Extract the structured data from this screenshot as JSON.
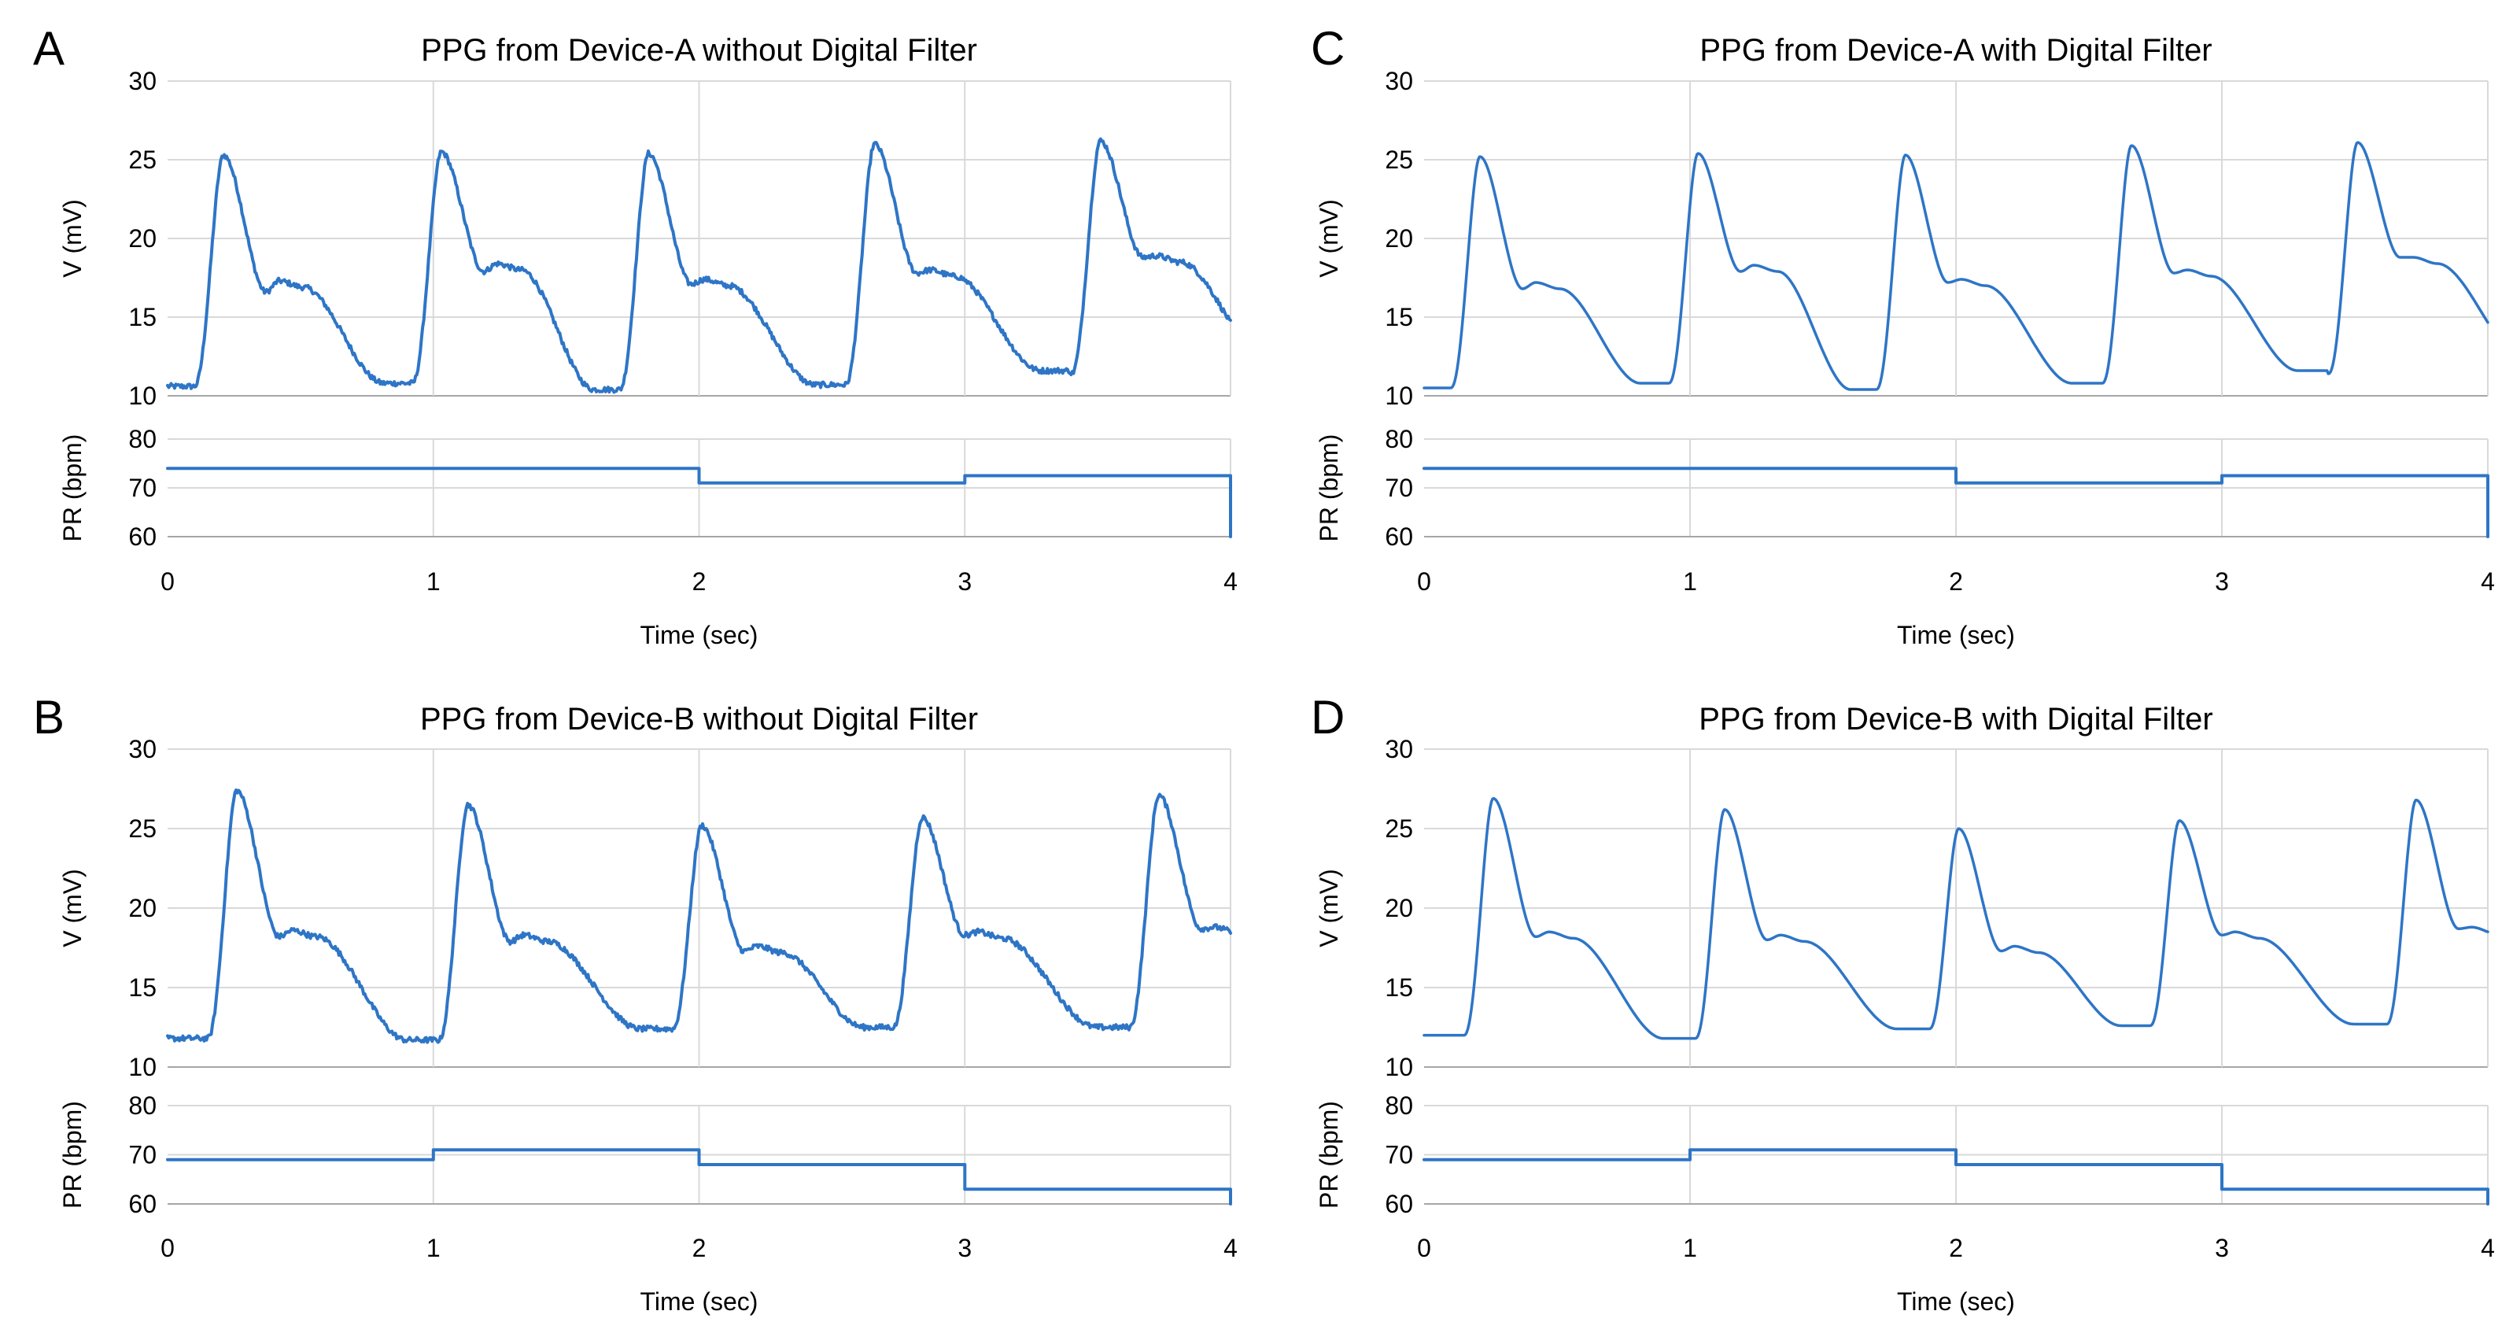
{
  "colors": {
    "trace": "#2e75c6",
    "grid": "#d9d9d9",
    "axis": "#a6a6a6"
  },
  "chart_data": [
    {
      "panel": "A",
      "type": "line",
      "title": "PPG from Device-A without Digital Filter",
      "xlabel": "Time (sec)",
      "xlim": [
        0,
        4
      ],
      "x_ticks": [
        "0",
        "1",
        "2",
        "3",
        "4"
      ],
      "grid": true,
      "ppg": {
        "ylabel": "V (mV)",
        "ylim": [
          10,
          30
        ],
        "y_ticks": [
          "10",
          "15",
          "20",
          "25",
          "30"
        ],
        "noisy": true,
        "beats": [
          {
            "onset": 0.1,
            "base": 10.6,
            "peak": 25.3,
            "notch": 16.6,
            "notch_peak": 17.3,
            "end": 10.8
          },
          {
            "onset": 0.92,
            "base": 10.8,
            "peak": 25.5,
            "notch": 17.9,
            "notch_peak": 18.4,
            "end": 10.4
          },
          {
            "onset": 1.7,
            "base": 10.4,
            "peak": 25.4,
            "notch": 17.1,
            "notch_peak": 17.4,
            "end": 10.7
          },
          {
            "onset": 2.55,
            "base": 10.7,
            "peak": 26.0,
            "notch": 17.8,
            "notch_peak": 18.0,
            "end": 11.6
          },
          {
            "onset": 3.4,
            "base": 11.4,
            "peak": 26.2,
            "notch": 18.8,
            "notch_peak": 18.9,
            "end": 12.3
          }
        ]
      },
      "pr": {
        "ylabel": "PR (bpm)",
        "ylim": [
          60,
          80
        ],
        "y_ticks": [
          "60",
          "70",
          "80"
        ],
        "steps": [
          {
            "x0": 0,
            "x1": 2,
            "value": 74
          },
          {
            "x0": 2,
            "x1": 3,
            "value": 71
          },
          {
            "x0": 3,
            "x1": 4,
            "value": 72.5
          }
        ]
      }
    },
    {
      "panel": "C",
      "type": "line",
      "title": "PPG from Device-A with Digital Filter",
      "xlabel": "Time (sec)",
      "xlim": [
        0,
        4
      ],
      "x_ticks": [
        "0",
        "1",
        "2",
        "3",
        "4"
      ],
      "grid": true,
      "ppg": {
        "ylabel": "V (mV)",
        "ylim": [
          10,
          30
        ],
        "y_ticks": [
          "10",
          "15",
          "20",
          "25",
          "30"
        ],
        "noisy": false,
        "beats": [
          {
            "onset": 0.1,
            "base": 10.5,
            "peak": 25.2,
            "notch": 16.8,
            "notch_peak": 17.2,
            "end": 10.8
          },
          {
            "onset": 0.92,
            "base": 10.8,
            "peak": 25.4,
            "notch": 17.9,
            "notch_peak": 18.3,
            "end": 10.4
          },
          {
            "onset": 1.7,
            "base": 10.4,
            "peak": 25.3,
            "notch": 17.2,
            "notch_peak": 17.4,
            "end": 10.8
          },
          {
            "onset": 2.55,
            "base": 10.8,
            "peak": 25.9,
            "notch": 17.8,
            "notch_peak": 18.0,
            "end": 11.6
          },
          {
            "onset": 3.4,
            "base": 11.4,
            "peak": 26.1,
            "notch": 18.8,
            "notch_peak": 18.8,
            "end": 12.4
          }
        ]
      },
      "pr": {
        "ylabel": "PR (bpm)",
        "ylim": [
          60,
          80
        ],
        "y_ticks": [
          "60",
          "70",
          "80"
        ],
        "steps": [
          {
            "x0": 0,
            "x1": 2,
            "value": 74
          },
          {
            "x0": 2,
            "x1": 3,
            "value": 71
          },
          {
            "x0": 3,
            "x1": 4,
            "value": 72.5
          }
        ]
      }
    },
    {
      "panel": "B",
      "type": "line",
      "title": "PPG from Device-B without Digital Filter",
      "xlabel": "Time (sec)",
      "xlim": [
        0,
        4
      ],
      "x_ticks": [
        "0",
        "1",
        "2",
        "3",
        "4"
      ],
      "grid": true,
      "ppg": {
        "ylabel": "V (mV)",
        "ylim": [
          10,
          30
        ],
        "y_ticks": [
          "10",
          "15",
          "20",
          "25",
          "30"
        ],
        "noisy": true,
        "beats": [
          {
            "onset": 0.15,
            "base": 11.8,
            "peak": 27.4,
            "notch": 18.2,
            "notch_peak": 18.6,
            "end": 11.7
          },
          {
            "onset": 1.02,
            "base": 11.7,
            "peak": 26.5,
            "notch": 17.9,
            "notch_peak": 18.3,
            "end": 12.4
          },
          {
            "onset": 1.9,
            "base": 12.4,
            "peak": 25.2,
            "notch": 17.3,
            "notch_peak": 17.6,
            "end": 12.5
          },
          {
            "onset": 2.73,
            "base": 12.5,
            "peak": 25.7,
            "notch": 18.3,
            "notch_peak": 18.5,
            "end": 12.5
          },
          {
            "onset": 3.62,
            "base": 12.5,
            "peak": 27.1,
            "notch": 18.7,
            "notch_peak": 18.8,
            "end": 18.7
          }
        ]
      },
      "pr": {
        "ylabel": "PR (bpm)",
        "ylim": [
          60,
          80
        ],
        "y_ticks": [
          "60",
          "70",
          "80"
        ],
        "steps": [
          {
            "x0": 0,
            "x1": 1,
            "value": 69
          },
          {
            "x0": 1,
            "x1": 2,
            "value": 71
          },
          {
            "x0": 2,
            "x1": 3,
            "value": 68
          },
          {
            "x0": 3,
            "x1": 4,
            "value": 63
          }
        ]
      }
    },
    {
      "panel": "D",
      "type": "line",
      "title": "PPG from Device-B with Digital Filter",
      "xlabel": "Time (sec)",
      "xlim": [
        0,
        4
      ],
      "x_ticks": [
        "0",
        "1",
        "2",
        "3",
        "4"
      ],
      "grid": true,
      "ppg": {
        "ylabel": "V (mV)",
        "ylim": [
          10,
          30
        ],
        "y_ticks": [
          "10",
          "15",
          "20",
          "25",
          "30"
        ],
        "noisy": false,
        "beats": [
          {
            "onset": 0.15,
            "base": 12.0,
            "peak": 26.9,
            "notch": 18.2,
            "notch_peak": 18.5,
            "end": 11.8
          },
          {
            "onset": 1.02,
            "base": 11.8,
            "peak": 26.2,
            "notch": 18.0,
            "notch_peak": 18.3,
            "end": 12.4
          },
          {
            "onset": 1.9,
            "base": 12.4,
            "peak": 25.0,
            "notch": 17.3,
            "notch_peak": 17.6,
            "end": 12.6
          },
          {
            "onset": 2.73,
            "base": 12.6,
            "peak": 25.5,
            "notch": 18.3,
            "notch_peak": 18.5,
            "end": 12.7
          },
          {
            "onset": 3.62,
            "base": 12.7,
            "peak": 26.8,
            "notch": 18.7,
            "notch_peak": 18.8,
            "end": 18.7
          }
        ]
      },
      "pr": {
        "ylabel": "PR (bpm)",
        "ylim": [
          60,
          80
        ],
        "y_ticks": [
          "60",
          "70",
          "80"
        ],
        "steps": [
          {
            "x0": 0,
            "x1": 1,
            "value": 69
          },
          {
            "x0": 1,
            "x1": 2,
            "value": 71
          },
          {
            "x0": 2,
            "x1": 3,
            "value": 68
          },
          {
            "x0": 3,
            "x1": 4,
            "value": 63
          }
        ]
      }
    }
  ]
}
